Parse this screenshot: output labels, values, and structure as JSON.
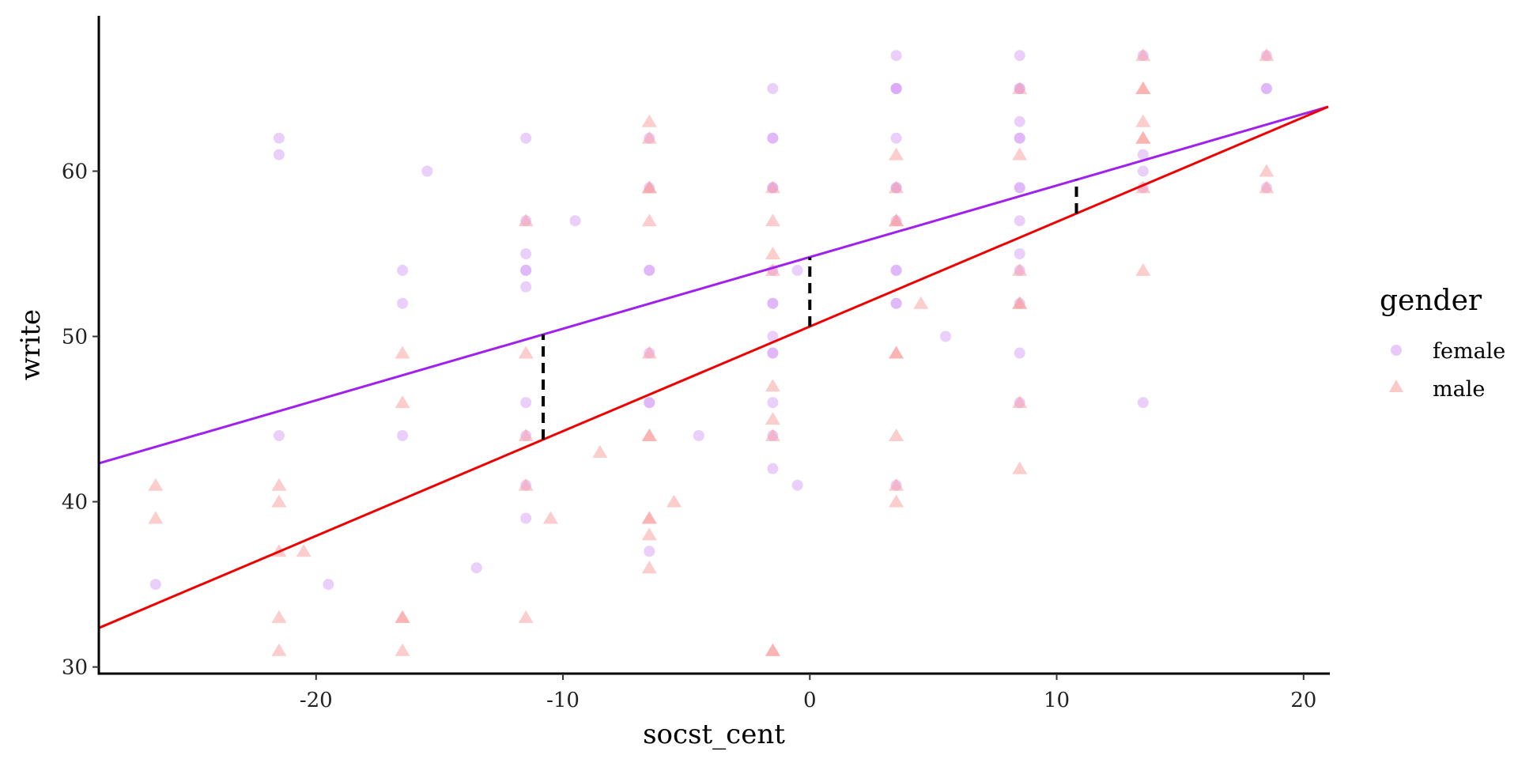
{
  "chart_data": {
    "type": "scatter",
    "xlabel": "socst_cent",
    "ylabel": "write",
    "xlim": [
      -28.8,
      21
    ],
    "ylim": [
      29.6,
      69.4
    ],
    "x_ticks": [
      -20,
      -10,
      0,
      10,
      20
    ],
    "y_ticks": [
      30,
      40,
      50,
      60
    ],
    "grid": false,
    "legend": {
      "title": "gender",
      "placement": "right",
      "entries": [
        "female",
        "male"
      ]
    },
    "colors": {
      "female_points": "#d69ff5",
      "male_points": "#fa9c9c",
      "female_line": "#a020f0",
      "male_line": "#ee0000",
      "segments": "#000000"
    },
    "series": [
      {
        "name": "female",
        "marker": "circle",
        "points": [
          [
            -26.5,
            35
          ],
          [
            -21.5,
            62
          ],
          [
            -21.5,
            61
          ],
          [
            -21.5,
            44
          ],
          [
            -19.5,
            35
          ],
          [
            -16.5,
            54
          ],
          [
            -16.5,
            52
          ],
          [
            -16.5,
            44
          ],
          [
            -15.5,
            60
          ],
          [
            -13.5,
            36
          ],
          [
            -11.5,
            62
          ],
          [
            -11.5,
            57
          ],
          [
            -11.5,
            55
          ],
          [
            -11.5,
            54
          ],
          [
            -11.5,
            54
          ],
          [
            -11.5,
            53
          ],
          [
            -11.5,
            46
          ],
          [
            -11.5,
            44
          ],
          [
            -11.5,
            41
          ],
          [
            -11.5,
            39
          ],
          [
            -9.5,
            57
          ],
          [
            -6.5,
            62
          ],
          [
            -6.5,
            59
          ],
          [
            -6.5,
            54
          ],
          [
            -6.5,
            54
          ],
          [
            -6.5,
            49
          ],
          [
            -6.5,
            46
          ],
          [
            -6.5,
            46
          ],
          [
            -6.5,
            37
          ],
          [
            -4.5,
            44
          ],
          [
            -1.5,
            65
          ],
          [
            -1.5,
            62
          ],
          [
            -1.5,
            62
          ],
          [
            -1.5,
            59
          ],
          [
            -1.5,
            59
          ],
          [
            -1.5,
            54
          ],
          [
            -1.5,
            52
          ],
          [
            -1.5,
            52
          ],
          [
            -1.5,
            50
          ],
          [
            -1.5,
            49
          ],
          [
            -1.5,
            49
          ],
          [
            -1.5,
            46
          ],
          [
            -1.5,
            44
          ],
          [
            -1.5,
            42
          ],
          [
            -0.5,
            54
          ],
          [
            -0.5,
            41
          ],
          [
            3.5,
            67
          ],
          [
            3.5,
            65
          ],
          [
            3.5,
            65
          ],
          [
            3.5,
            65
          ],
          [
            3.5,
            62
          ],
          [
            3.5,
            59
          ],
          [
            3.5,
            59
          ],
          [
            3.5,
            57
          ],
          [
            3.5,
            54
          ],
          [
            3.5,
            54
          ],
          [
            3.5,
            52
          ],
          [
            3.5,
            52
          ],
          [
            3.5,
            41
          ],
          [
            5.5,
            50
          ],
          [
            8.5,
            67
          ],
          [
            8.5,
            65
          ],
          [
            8.5,
            65
          ],
          [
            8.5,
            63
          ],
          [
            8.5,
            62
          ],
          [
            8.5,
            62
          ],
          [
            8.5,
            59
          ],
          [
            8.5,
            59
          ],
          [
            8.5,
            57
          ],
          [
            8.5,
            55
          ],
          [
            8.5,
            54
          ],
          [
            8.5,
            52
          ],
          [
            8.5,
            49
          ],
          [
            8.5,
            46
          ],
          [
            13.5,
            67
          ],
          [
            13.5,
            61
          ],
          [
            13.5,
            60
          ],
          [
            13.5,
            59
          ],
          [
            13.5,
            46
          ],
          [
            18.5,
            67
          ],
          [
            18.5,
            65
          ],
          [
            18.5,
            65
          ],
          [
            18.5,
            59
          ]
        ]
      },
      {
        "name": "male",
        "marker": "triangle",
        "points": [
          [
            -26.5,
            41
          ],
          [
            -26.5,
            39
          ],
          [
            -21.5,
            41
          ],
          [
            -21.5,
            40
          ],
          [
            -21.5,
            37
          ],
          [
            -21.5,
            33
          ],
          [
            -21.5,
            31
          ],
          [
            -20.5,
            37
          ],
          [
            -16.5,
            49
          ],
          [
            -16.5,
            46
          ],
          [
            -16.5,
            33
          ],
          [
            -16.5,
            33
          ],
          [
            -16.5,
            31
          ],
          [
            -11.5,
            57
          ],
          [
            -11.5,
            49
          ],
          [
            -11.5,
            44
          ],
          [
            -11.5,
            41
          ],
          [
            -11.5,
            33
          ],
          [
            -10.5,
            39
          ],
          [
            -8.5,
            43
          ],
          [
            -6.5,
            63
          ],
          [
            -6.5,
            62
          ],
          [
            -6.5,
            59
          ],
          [
            -6.5,
            59
          ],
          [
            -6.5,
            57
          ],
          [
            -6.5,
            49
          ],
          [
            -6.5,
            44
          ],
          [
            -6.5,
            44
          ],
          [
            -6.5,
            39
          ],
          [
            -6.5,
            39
          ],
          [
            -6.5,
            38
          ],
          [
            -6.5,
            36
          ],
          [
            -5.5,
            40
          ],
          [
            -1.5,
            59
          ],
          [
            -1.5,
            57
          ],
          [
            -1.5,
            55
          ],
          [
            -1.5,
            54
          ],
          [
            -1.5,
            47
          ],
          [
            -1.5,
            45
          ],
          [
            -1.5,
            44
          ],
          [
            -1.5,
            31
          ],
          [
            -1.5,
            31
          ],
          [
            3.5,
            61
          ],
          [
            3.5,
            59
          ],
          [
            3.5,
            57
          ],
          [
            3.5,
            57
          ],
          [
            3.5,
            49
          ],
          [
            3.5,
            49
          ],
          [
            3.5,
            44
          ],
          [
            3.5,
            41
          ],
          [
            3.5,
            40
          ],
          [
            4.5,
            52
          ],
          [
            8.5,
            65
          ],
          [
            8.5,
            61
          ],
          [
            8.5,
            54
          ],
          [
            8.5,
            52
          ],
          [
            8.5,
            52
          ],
          [
            8.5,
            46
          ],
          [
            8.5,
            42
          ],
          [
            13.5,
            67
          ],
          [
            13.5,
            65
          ],
          [
            13.5,
            65
          ],
          [
            13.5,
            63
          ],
          [
            13.5,
            62
          ],
          [
            13.5,
            62
          ],
          [
            13.5,
            59
          ],
          [
            13.5,
            54
          ],
          [
            18.5,
            67
          ],
          [
            18.5,
            60
          ],
          [
            18.5,
            59
          ]
        ]
      }
    ],
    "fit_lines": [
      {
        "name": "female",
        "intercept": 54.8,
        "slope": 0.4333
      },
      {
        "name": "male",
        "intercept": 50.6,
        "slope": 0.6333
      }
    ],
    "difference_segments": [
      {
        "x": -10.8,
        "y_from": 43.76,
        "y_to": 50.12
      },
      {
        "x": 0,
        "y_from": 50.6,
        "y_to": 54.8
      },
      {
        "x": 10.8,
        "y_from": 57.44,
        "y_to": 59.48
      }
    ]
  }
}
